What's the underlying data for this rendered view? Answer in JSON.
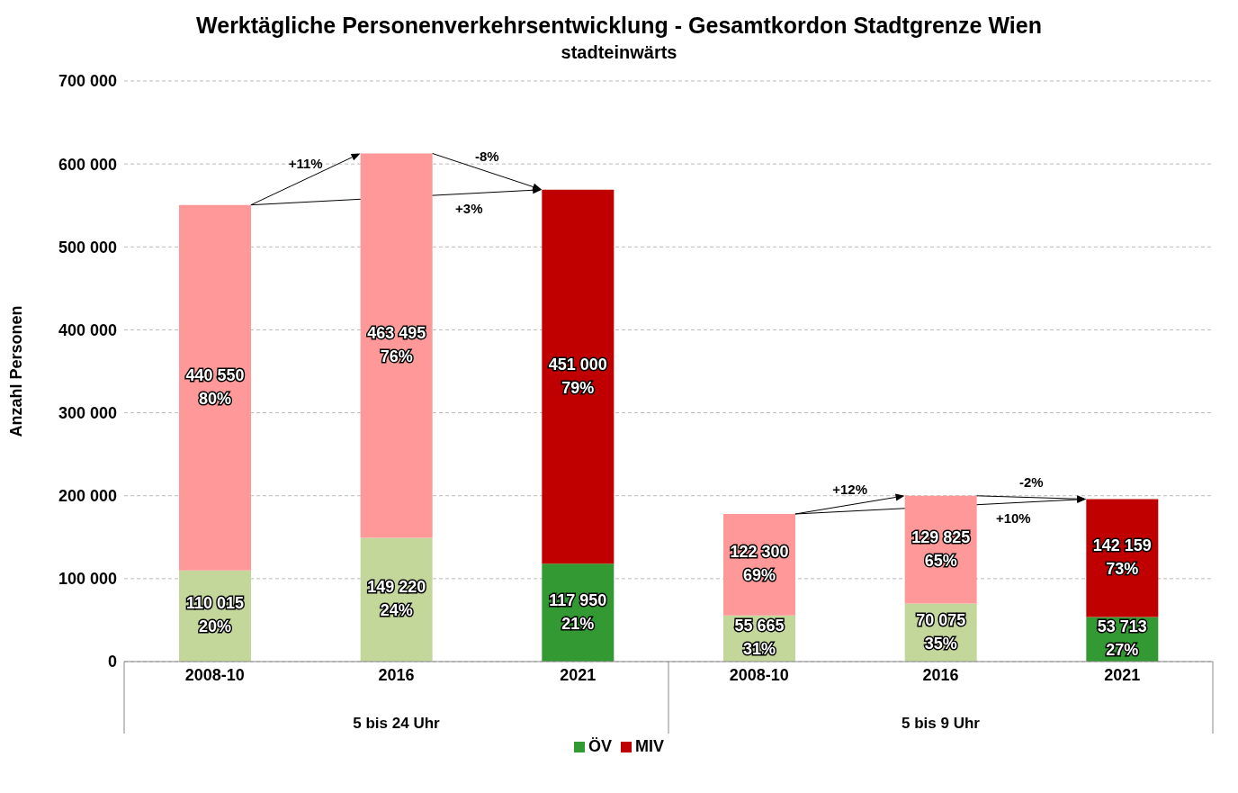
{
  "chart_data": {
    "type": "bar",
    "title": "Werktägliche Personenverkehrsentwicklung - Gesamtkordon Stadtgrenze Wien",
    "subtitle": "stadteinwärts",
    "ylabel": "Anzahl Personen",
    "categories": [
      "2008-10",
      "2016",
      "2021",
      "2008-10",
      "2016",
      "2021"
    ],
    "stacked": true,
    "series": [
      {
        "name": "ÖV",
        "color": "#339933",
        "colors": [
          "#c4d79b",
          "#c4d79b",
          "#339933",
          "#c4d79b",
          "#c4d79b",
          "#339933"
        ],
        "values": [
          110015,
          149220,
          117950,
          55665,
          70075,
          53713
        ],
        "value_labels": [
          "110 015\n20%",
          "149 220\n24%",
          "117 950\n21%",
          "55 665\n31%",
          "70 075\n35%",
          "53 713\n27%"
        ]
      },
      {
        "name": "MIV",
        "color": "#c00000",
        "colors": [
          "#ff9999",
          "#ff9999",
          "#c00000",
          "#ff9999",
          "#ff9999",
          "#c00000"
        ],
        "values": [
          440550,
          463495,
          451000,
          122300,
          129825,
          142159
        ],
        "value_labels": [
          "440 550\n80%",
          "463 495\n76%",
          "451 000\n79%",
          "122 300\n69%",
          "129 825\n65%",
          "142 159\n73%"
        ]
      }
    ],
    "ylim": [
      0,
      700000
    ],
    "yticks": [
      0,
      {
        "value": 100000,
        "label": "100 000"
      },
      {
        "value": 200000,
        "label": "200 000"
      },
      {
        "value": 300000,
        "label": "300 000"
      },
      {
        "value": 400000,
        "label": "400 000"
      },
      {
        "value": 500000,
        "label": "500 000"
      },
      {
        "value": 600000,
        "label": "600 000"
      },
      {
        "value": 700000,
        "label": "700 000"
      }
    ],
    "grid": "y",
    "legend": "bottom",
    "annotations": [
      "+11%",
      "-8%",
      "+3%",
      "+12%",
      "-2%",
      "+10%",
      "5 bis 24 Uhr",
      "5 bis 9 Uhr"
    ]
  }
}
